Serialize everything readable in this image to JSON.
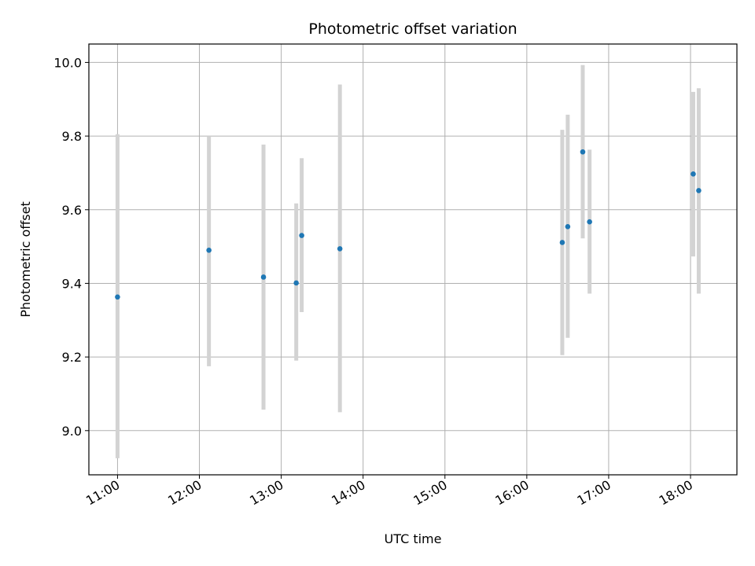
{
  "chart_data": {
    "type": "scatter",
    "title": "Photometric offset variation",
    "xlabel": "UTC time",
    "ylabel": "Photometric offset",
    "x_ticks": [
      "11:00",
      "12:00",
      "13:00",
      "14:00",
      "15:00",
      "16:00",
      "17:00",
      "18:00"
    ],
    "y_ticks": [
      "9.0",
      "9.2",
      "9.4",
      "9.6",
      "9.8",
      "10.0"
    ],
    "xlim": [
      "10:39",
      "18:34"
    ],
    "ylim": [
      8.88,
      10.05
    ],
    "grid": true,
    "legend": "none",
    "marker_color": "#1f77b4",
    "errorbar_color": "#d3d3d3",
    "points": [
      {
        "time": "11:00",
        "y": 9.363,
        "low": 8.925,
        "high": 9.805
      },
      {
        "time": "12:07",
        "y": 9.49,
        "low": 9.175,
        "high": 9.8
      },
      {
        "time": "12:47",
        "y": 9.417,
        "low": 9.057,
        "high": 9.777
      },
      {
        "time": "13:11",
        "y": 9.401,
        "low": 9.19,
        "high": 9.617
      },
      {
        "time": "13:15",
        "y": 9.53,
        "low": 9.322,
        "high": 9.74
      },
      {
        "time": "13:43",
        "y": 9.494,
        "low": 9.05,
        "high": 9.94
      },
      {
        "time": "16:26",
        "y": 9.511,
        "low": 9.205,
        "high": 9.817
      },
      {
        "time": "16:30",
        "y": 9.554,
        "low": 9.252,
        "high": 9.858
      },
      {
        "time": "16:41",
        "y": 9.757,
        "low": 9.522,
        "high": 9.993
      },
      {
        "time": "16:46",
        "y": 9.567,
        "low": 9.372,
        "high": 9.763
      },
      {
        "time": "18:02",
        "y": 9.697,
        "low": 9.473,
        "high": 9.92
      },
      {
        "time": "18:06",
        "y": 9.652,
        "low": 9.372,
        "high": 9.93
      }
    ]
  }
}
